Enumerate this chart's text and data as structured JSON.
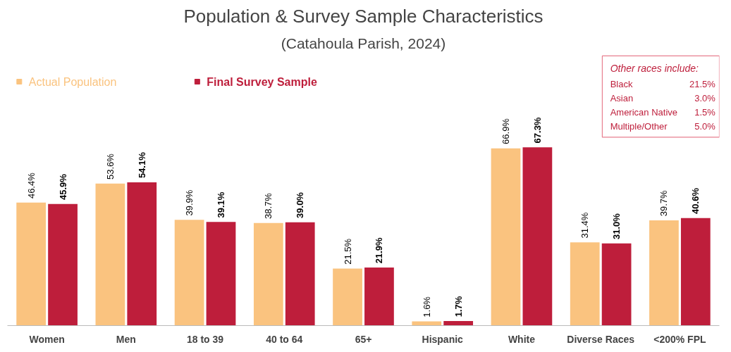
{
  "chart_data": {
    "type": "bar",
    "title": "Population & Survey Sample Characteristics",
    "subtitle": "(Catahoula Parish, 2024)",
    "categories": [
      "Women",
      "Men",
      "18 to 39",
      "40 to 64",
      "65+",
      "Hispanic",
      "White",
      "Diverse Races",
      "<200% FPL"
    ],
    "series": [
      {
        "name": "Actual Population",
        "color": "#fac37f",
        "values": [
          46.4,
          53.6,
          39.9,
          38.7,
          21.5,
          1.6,
          66.9,
          31.4,
          39.7
        ],
        "value_labels": [
          "46.4%",
          "53.6%",
          "39.9%",
          "38.7%",
          "21.5%",
          "1.6%",
          "66.9%",
          "31.4%",
          "39.7%"
        ]
      },
      {
        "name": "Final Survey Sample",
        "color": "#be1e3b",
        "values": [
          45.9,
          54.1,
          39.1,
          39.0,
          21.9,
          1.7,
          67.3,
          31.0,
          40.6
        ],
        "value_labels": [
          "45.9%",
          "54.1%",
          "39.1%",
          "39.0%",
          "21.9%",
          "1.7%",
          "67.3%",
          "31.0%",
          "40.6%"
        ]
      }
    ],
    "annotations": [
      "Other races include:",
      "Black",
      "21.5%",
      "Asian",
      "3.0%",
      "American Native",
      "1.5%",
      "Multiple/Other",
      "5.0%"
    ],
    "legend": "top left",
    "grid": false
  }
}
